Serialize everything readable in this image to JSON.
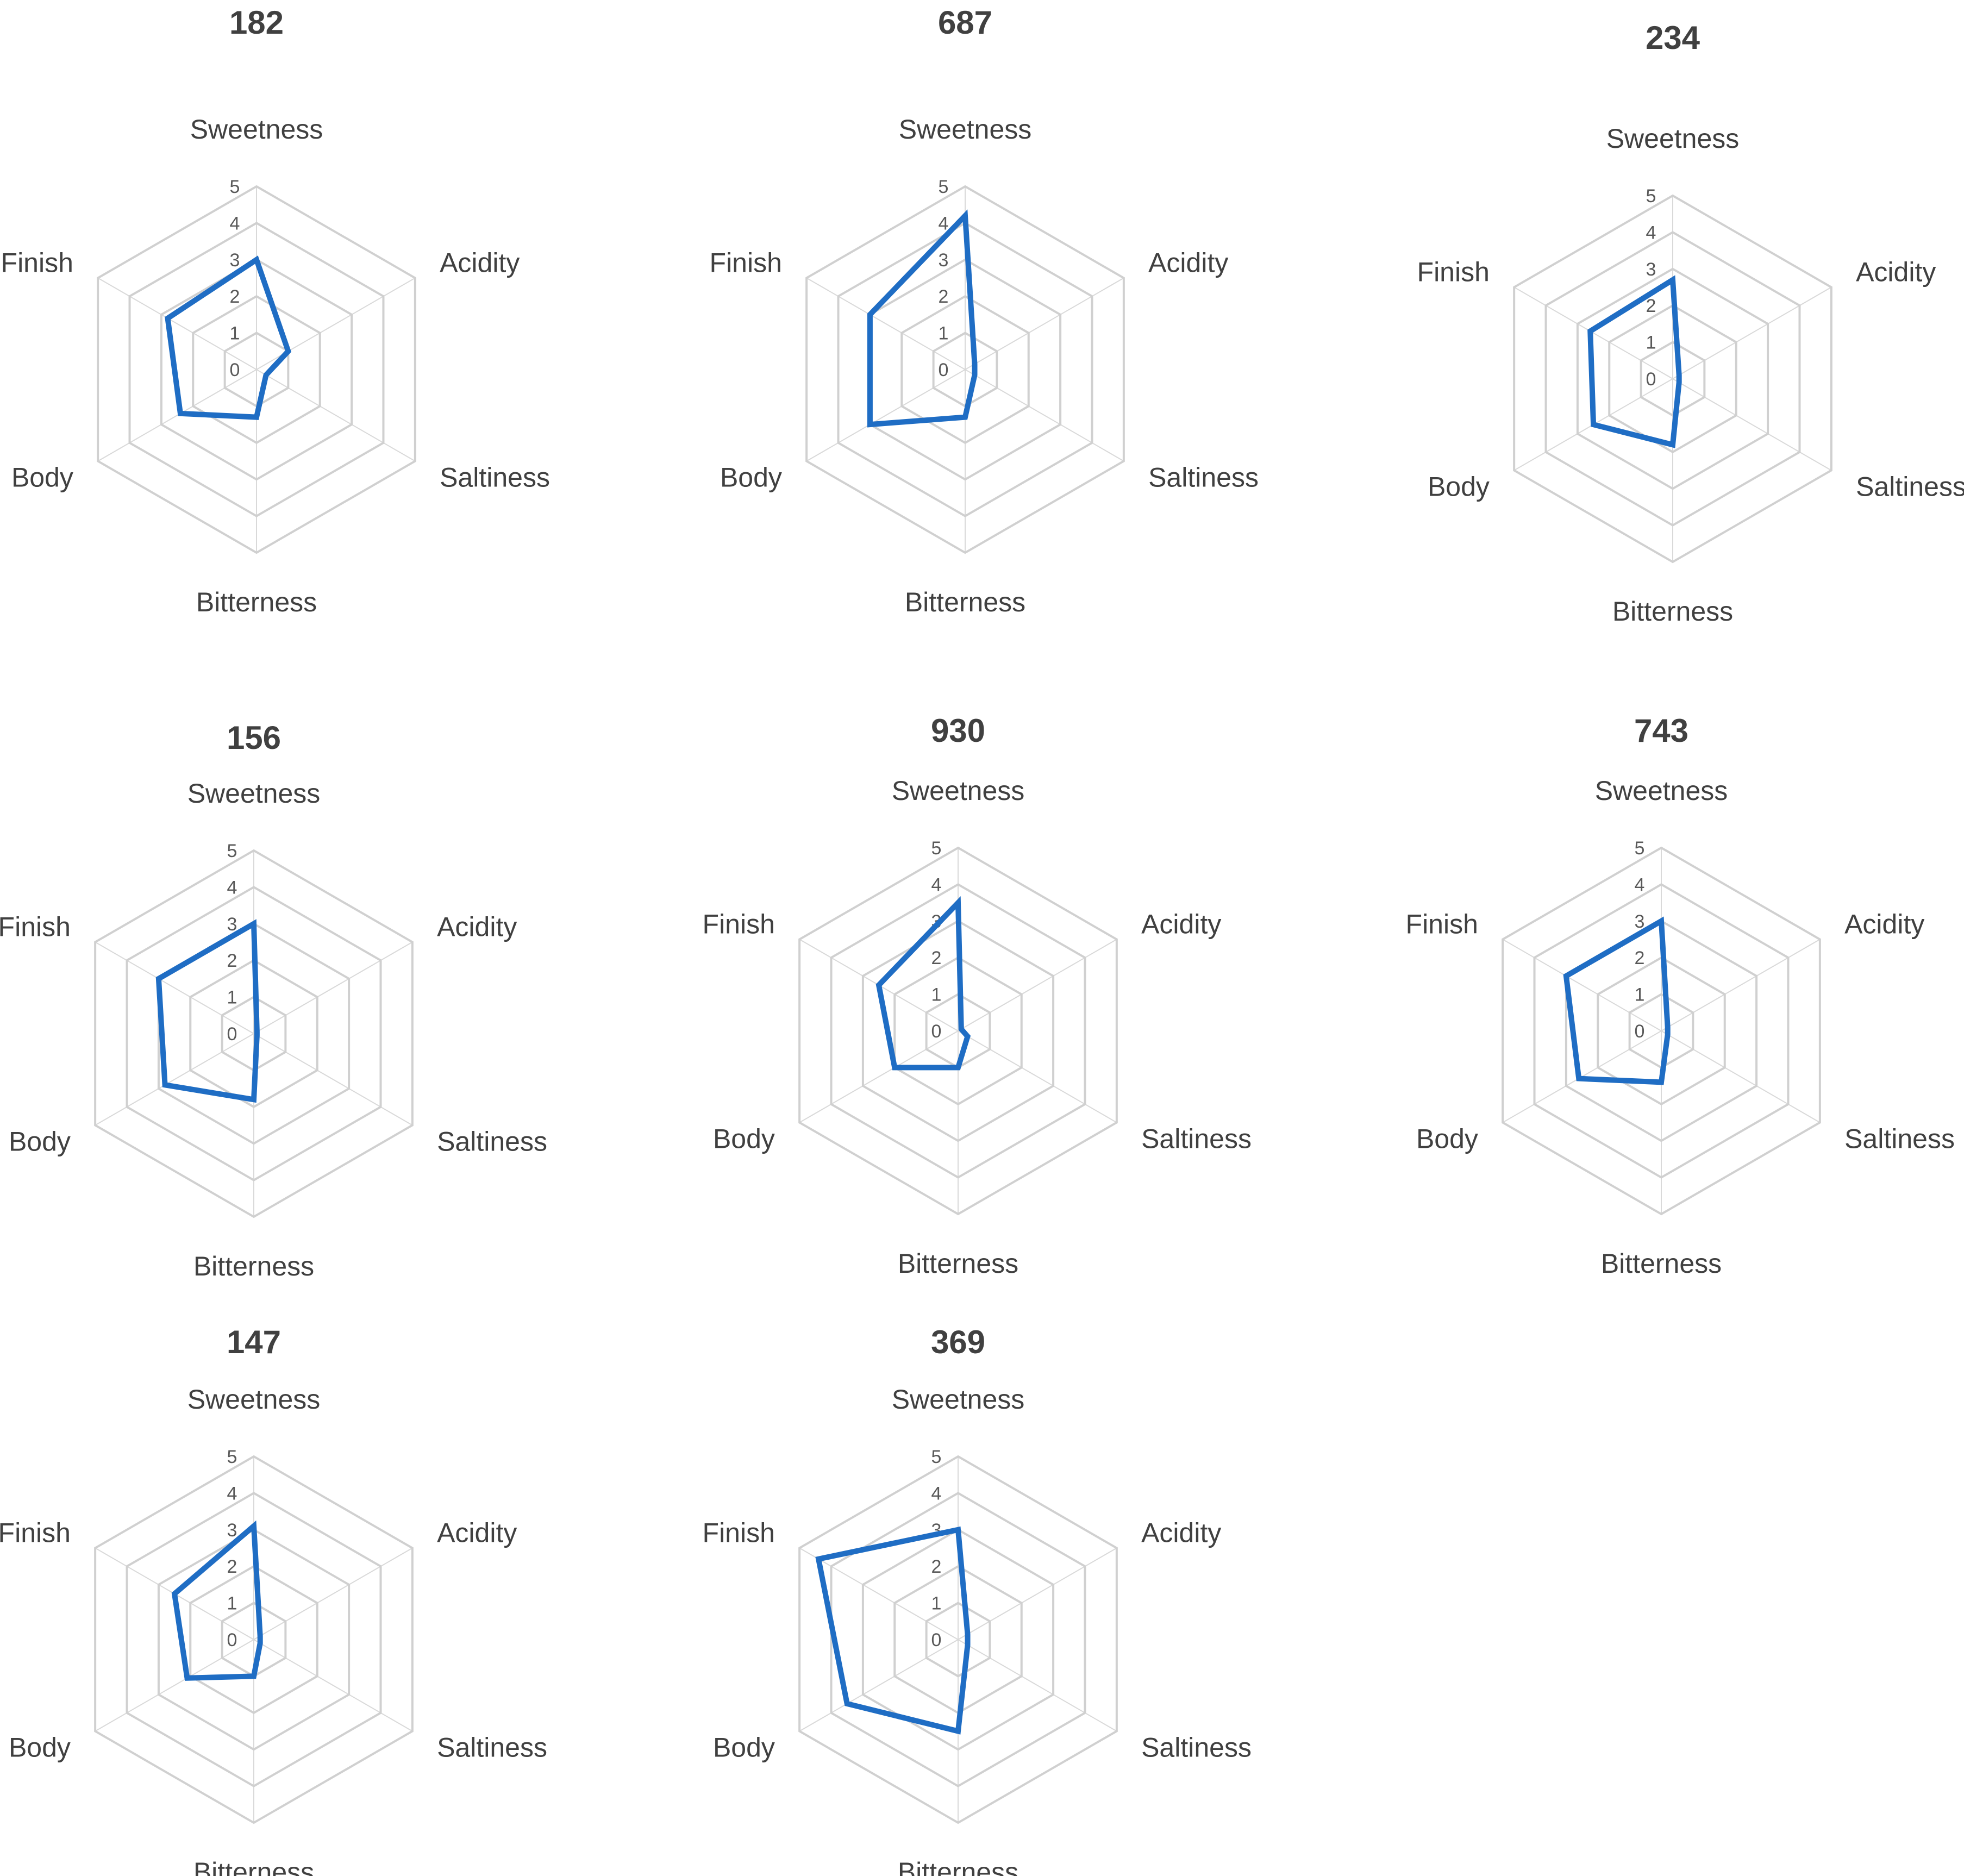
{
  "chart_data": [
    {
      "type": "radar",
      "title": "182",
      "categories": [
        "Sweetness",
        "Acidity",
        "Saltiness",
        "Bitterness",
        "Body",
        "Finish"
      ],
      "values": [
        3.0,
        1.0,
        0.3,
        1.3,
        2.4,
        2.8
      ],
      "rlim": [
        0,
        5
      ],
      "ticks": [
        "0",
        "1",
        "2",
        "3",
        "4",
        "5"
      ]
    },
    {
      "type": "radar",
      "title": "687",
      "categories": [
        "Sweetness",
        "Acidity",
        "Saltiness",
        "Bitterness",
        "Body",
        "Finish"
      ],
      "values": [
        4.2,
        0.3,
        0.3,
        1.3,
        3.0,
        3.0
      ],
      "rlim": [
        0,
        5
      ],
      "ticks": [
        "0",
        "1",
        "2",
        "3",
        "4",
        "5"
      ]
    },
    {
      "type": "radar",
      "title": "234",
      "categories": [
        "Sweetness",
        "Acidity",
        "Saltiness",
        "Bitterness",
        "Body",
        "Finish"
      ],
      "values": [
        2.7,
        0.2,
        0.2,
        1.8,
        2.5,
        2.6
      ],
      "rlim": [
        0,
        5
      ],
      "ticks": [
        "0",
        "1",
        "2",
        "3",
        "4",
        "5"
      ]
    },
    {
      "type": "radar",
      "title": "156",
      "categories": [
        "Sweetness",
        "Acidity",
        "Saltiness",
        "Bitterness",
        "Body",
        "Finish"
      ],
      "values": [
        3.0,
        0.1,
        0.1,
        1.8,
        2.8,
        3.0
      ],
      "rlim": [
        0,
        5
      ],
      "ticks": [
        "0",
        "1",
        "2",
        "3",
        "4",
        "5"
      ]
    },
    {
      "type": "radar",
      "title": "930",
      "categories": [
        "Sweetness",
        "Acidity",
        "Saltiness",
        "Bitterness",
        "Body",
        "Finish"
      ],
      "values": [
        3.5,
        0.1,
        0.3,
        1.0,
        2.0,
        2.5
      ],
      "rlim": [
        0,
        5
      ],
      "ticks": [
        "0",
        "1",
        "2",
        "3",
        "4",
        "5"
      ]
    },
    {
      "type": "radar",
      "title": "743",
      "categories": [
        "Sweetness",
        "Acidity",
        "Saltiness",
        "Bitterness",
        "Body",
        "Finish"
      ],
      "values": [
        3.0,
        0.2,
        0.2,
        1.4,
        2.6,
        3.0
      ],
      "rlim": [
        0,
        5
      ],
      "ticks": [
        "0",
        "1",
        "2",
        "3",
        "4",
        "5"
      ]
    },
    {
      "type": "radar",
      "title": "147",
      "categories": [
        "Sweetness",
        "Acidity",
        "Saltiness",
        "Bitterness",
        "Body",
        "Finish"
      ],
      "values": [
        3.1,
        0.2,
        0.2,
        1.0,
        2.1,
        2.5
      ],
      "rlim": [
        0,
        5
      ],
      "ticks": [
        "0",
        "1",
        "2",
        "3",
        "4",
        "5"
      ]
    },
    {
      "type": "radar",
      "title": "369",
      "categories": [
        "Sweetness",
        "Acidity",
        "Saltiness",
        "Bitterness",
        "Body",
        "Finish"
      ],
      "values": [
        3.0,
        0.3,
        0.3,
        2.5,
        3.5,
        4.4
      ],
      "rlim": [
        0,
        5
      ],
      "ticks": [
        "0",
        "1",
        "2",
        "3",
        "4",
        "5"
      ]
    }
  ],
  "colors": {
    "series": "#1f6dc4",
    "grid": "#d0d0d0",
    "text": "#404040"
  }
}
